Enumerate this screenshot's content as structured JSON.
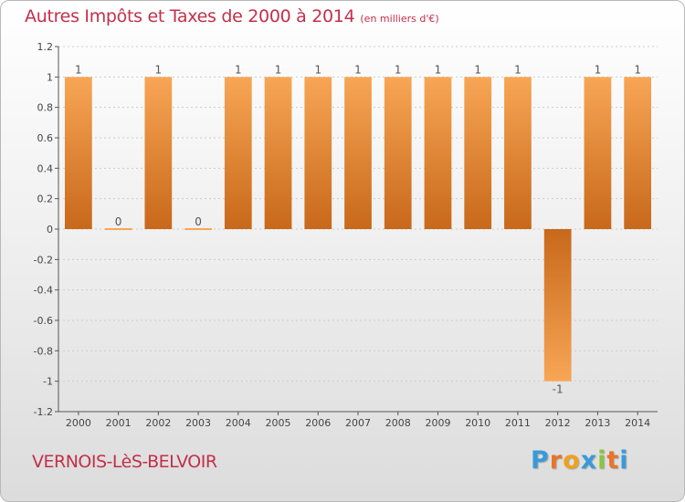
{
  "header": {
    "title": "Autres Impôts et Taxes de 2000 à 2014",
    "subtitle": "(en milliers d'€)"
  },
  "footer": {
    "commune": "VERNOIS-LèS-BELVOIR",
    "logo": {
      "text": "Proxiti",
      "letter_colors": [
        "#3a9ad9",
        "#e8742a",
        "#f0a020",
        "#3a9ad9",
        "#8ac43f",
        "#e8742a",
        "#3a9ad9"
      ]
    }
  },
  "colors": {
    "bar_light": "#f7a655",
    "bar_dark": "#c8681a",
    "axis": "#555555",
    "grid": "#cccccc",
    "label": "#444444"
  },
  "chart_data": {
    "type": "bar",
    "title": "Autres Impôts et Taxes de 2000 à 2014",
    "subtitle": "(en milliers d'€)",
    "categories": [
      "2000",
      "2001",
      "2002",
      "2003",
      "2004",
      "2005",
      "2006",
      "2007",
      "2008",
      "2009",
      "2010",
      "2011",
      "2012",
      "2013",
      "2014"
    ],
    "values": [
      1,
      0,
      1,
      0,
      1,
      1,
      1,
      1,
      1,
      1,
      1,
      1,
      -1,
      1,
      1
    ],
    "data_labels": [
      "1",
      "0",
      "1",
      "0",
      "1",
      "1",
      "1",
      "1",
      "1",
      "1",
      "1",
      "1",
      "-1",
      "1",
      "1"
    ],
    "ylim": [
      -1.2,
      1.2
    ],
    "yticks": [
      1.2,
      1,
      0.8,
      0.6,
      0.4,
      0.2,
      0,
      -0.2,
      -0.4,
      -0.6,
      -0.8,
      -1,
      -1.2
    ],
    "ytick_labels": [
      "1.2",
      "1",
      "0.8",
      "0.6",
      "0.4",
      "0.2",
      "0",
      "-0.2",
      "-0.4",
      "-0.6",
      "-0.8",
      "-1",
      "-1.2"
    ],
    "grid": true,
    "xlabel": "",
    "ylabel": ""
  }
}
